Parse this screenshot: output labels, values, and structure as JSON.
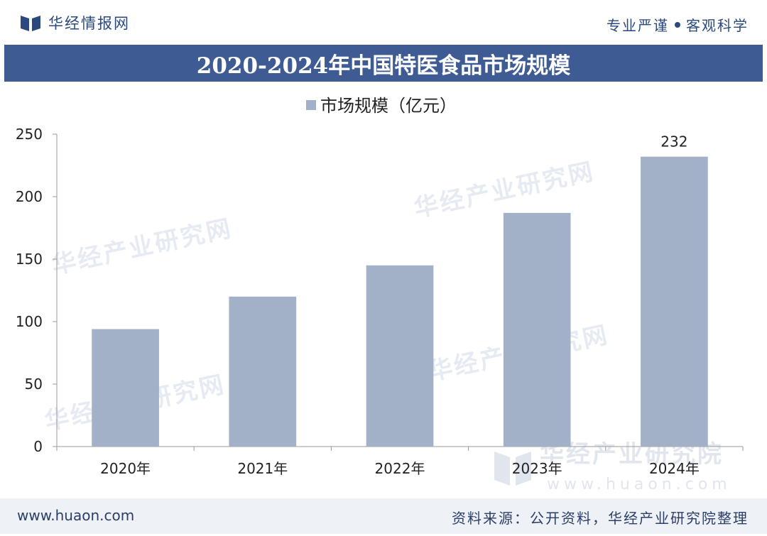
{
  "header": {
    "brand": "华经情报网",
    "slogan_left": "专业严谨",
    "slogan_right": "客观科学",
    "logo_icon": "book-logo-icon"
  },
  "watermarks": {
    "text": "华经产业研究网",
    "brand": "华经产业研究院",
    "url": "www.huaon.com"
  },
  "chart_data": {
    "type": "bar",
    "title": "2020-2024年中国特医食品市场规模",
    "categories": [
      "2020年",
      "2021年",
      "2022年",
      "2023年",
      "2024年"
    ],
    "series": [
      {
        "name": "市场规模（亿元）",
        "values": [
          94,
          120,
          145,
          187,
          232
        ],
        "color": "#a2b0c8"
      }
    ],
    "data_labels": [
      {
        "index": 4,
        "text": "232"
      }
    ],
    "ylim": [
      0,
      250
    ],
    "yticks": [
      0,
      50,
      100,
      150,
      200,
      250
    ],
    "xlabel": "",
    "ylabel": "",
    "grid": false,
    "legend_position": "top-center"
  },
  "colors": {
    "title_bar": "#3e5b94",
    "brand_text": "#2a4a7e",
    "bar": "#a2b0c8",
    "footer_bg": "#eef1f6"
  },
  "footer": {
    "website": "www.huaon.com",
    "source": "资料来源：公开资料，华经产业研究院整理"
  }
}
